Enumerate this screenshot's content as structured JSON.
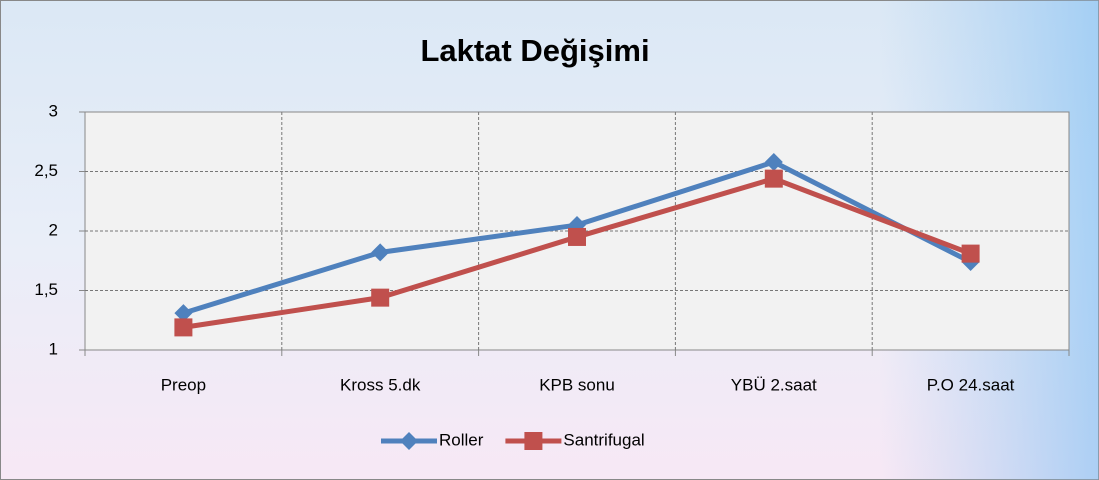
{
  "chart_data": {
    "type": "line",
    "title": "Laktat Değişimi",
    "categories": [
      "Preop",
      "Kross 5.dk",
      "KPB sonu",
      "YBÜ 2.saat",
      "P.O 24.saat"
    ],
    "series": [
      {
        "name": "Roller",
        "color": "#4f81bd",
        "marker": "diamond",
        "values": [
          1.31,
          1.82,
          2.05,
          2.58,
          1.74
        ]
      },
      {
        "name": "Santrifugal",
        "color": "#c0504d",
        "marker": "square",
        "values": [
          1.19,
          1.44,
          1.95,
          2.44,
          1.81
        ]
      }
    ],
    "ylim": [
      1,
      3
    ],
    "yticks": [
      1,
      {
        "value": 1.5,
        "label": "1,5"
      },
      2,
      {
        "value": 2.5,
        "label": "2,5"
      },
      3
    ],
    "grid": true,
    "legend": "bottom"
  }
}
